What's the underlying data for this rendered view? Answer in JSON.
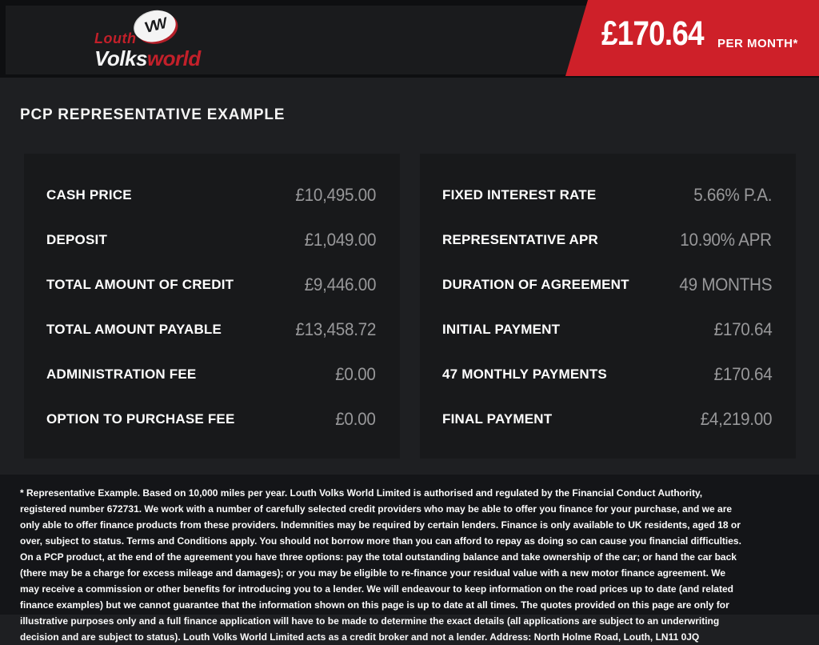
{
  "header": {
    "logo": {
      "top_word": "Louth",
      "badge": "VW",
      "name_white": "Volks",
      "name_red": "world"
    },
    "price": {
      "amount": "£170.64",
      "suffix": "PER MONTH*"
    }
  },
  "title": "PCP REPRESENTATIVE EXAMPLE",
  "panels": {
    "left": {
      "rows": [
        {
          "label": "CASH PRICE",
          "value": "£10,495.00"
        },
        {
          "label": "DEPOSIT",
          "value": "£1,049.00"
        },
        {
          "label": "TOTAL AMOUNT OF CREDIT",
          "value": "£9,446.00"
        },
        {
          "label": "TOTAL AMOUNT PAYABLE",
          "value": "£13,458.72"
        },
        {
          "label": "ADMINISTRATION FEE",
          "value": "£0.00"
        },
        {
          "label": "OPTION TO PURCHASE FEE",
          "value": "£0.00"
        }
      ]
    },
    "right": {
      "rows": [
        {
          "label": "FIXED INTEREST RATE",
          "value": "5.66% P.A."
        },
        {
          "label": "REPRESENTATIVE APR",
          "value": "10.90% APR"
        },
        {
          "label": "DURATION OF AGREEMENT",
          "value": "49 MONTHS"
        },
        {
          "label": "INITIAL PAYMENT",
          "value": "£170.64"
        },
        {
          "label": "47 MONTHLY PAYMENTS",
          "value": "£170.64"
        },
        {
          "label": "FINAL PAYMENT",
          "value": "£4,219.00"
        }
      ]
    }
  },
  "disclaimer": {
    "text": "* Representative Example. Based on 10,000 miles per year. Louth Volks World Limited is authorised and regulated by the Financial Conduct Authority, registered number 672731. We work with a number of carefully selected credit providers who may be able to offer you finance for your purchase, and we are only able to offer finance products from these providers. Indemnities may be required by certain lenders. Finance is only available to UK residents, aged 18 or over, subject to status. Terms and Conditions apply. You should not borrow more than you can afford to repay as doing so can cause you financial difficulties. On a PCP product, at the end of the agreement you have three options: pay the total outstanding balance and take ownership of the car; or hand the car back (there may be a charge for excess mileage and damages); or you may be eligible to re-finance your residual value with a new motor finance agreement. We may receive a commission or other benefits for introducing you to a lender. We will endeavour to keep information on the road prices up to date (and related finance examples) but we cannot guarantee that the information shown on this page is up to date at all times. The quotes provided on this page are only for illustrative purposes only and a full finance application will have to be made to determine the exact details (all applications are subject to an underwriting decision and are subject to status). Louth Volks World Limited acts as a credit broker and not a lender. Address: North Holme Road, Louth, LN11 0JQ"
  },
  "colors": {
    "accent_red": "#ce2029",
    "value_gray": "#98989a",
    "panel_bg": "#18191b",
    "page_bg": "#1e1f22",
    "topbar_bg": "#0e0f11"
  }
}
